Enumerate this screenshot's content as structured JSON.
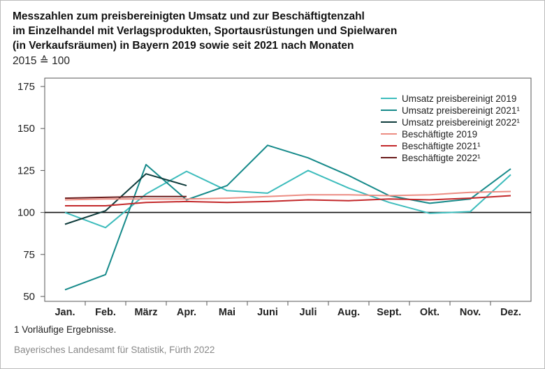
{
  "chart_data": {
    "type": "line",
    "title": [
      "Messzahlen zum preisbereinigten Umsatz und zur Beschäftigtenzahl",
      "im Einzelhandel mit Verlagsprodukten, Sportausrüstungen und Spielwaren",
      "(in Verkaufsräumen) in Bayern 2019 sowie seit 2021 nach Monaten"
    ],
    "subtitle": "2015 ≙ 100",
    "categories": [
      "Jan.",
      "Feb.",
      "März",
      "Apr.",
      "Mai",
      "Juni",
      "Juli",
      "Aug.",
      "Sept.",
      "Okt.",
      "Nov.",
      "Dez."
    ],
    "series": [
      {
        "name": "Umsatz preisbereinigt 2019",
        "color": "#3dbcbc",
        "values": [
          100,
          91,
          111,
          124.5,
          113,
          111.5,
          125,
          114.5,
          106,
          99.5,
          100.5,
          122.5
        ]
      },
      {
        "name": "Umsatz preisbereinigt 2021¹",
        "color": "#168a8a",
        "values": [
          54,
          63,
          128.5,
          107.5,
          116,
          140,
          132.5,
          122,
          110,
          105.5,
          108,
          126
        ]
      },
      {
        "name": "Umsatz preisbereinigt 2022¹",
        "color": "#0f3c3c",
        "values": [
          93,
          101,
          123,
          116,
          null,
          null,
          null,
          null,
          null,
          null,
          null,
          null
        ]
      },
      {
        "name": "Beschäftigte 2019",
        "color": "#ec8c82",
        "values": [
          107.5,
          108,
          108,
          108,
          108.5,
          109.5,
          110.5,
          110.5,
          110,
          110.5,
          112,
          112.5
        ]
      },
      {
        "name": "Beschäftigte 2021¹",
        "color": "#c3282a",
        "values": [
          104,
          104,
          106,
          106.5,
          106,
          106.5,
          107.5,
          107,
          108,
          107.5,
          108.5,
          110
        ]
      },
      {
        "name": "Beschäftigte 2022¹",
        "color": "#6a1b1b",
        "values": [
          108.5,
          109,
          109.5,
          109.5,
          null,
          null,
          null,
          null,
          null,
          null,
          null,
          null
        ]
      }
    ],
    "ylim": [
      50,
      175
    ],
    "yticks": [
      50,
      75,
      100,
      125,
      150,
      175
    ],
    "reference_line": 100,
    "grid": false,
    "legend": "upper right",
    "footnote": "1  Vorläufige Ergebnisse.",
    "source": "Bayerisches Landesamt für Statistik, Fürth 2022"
  }
}
